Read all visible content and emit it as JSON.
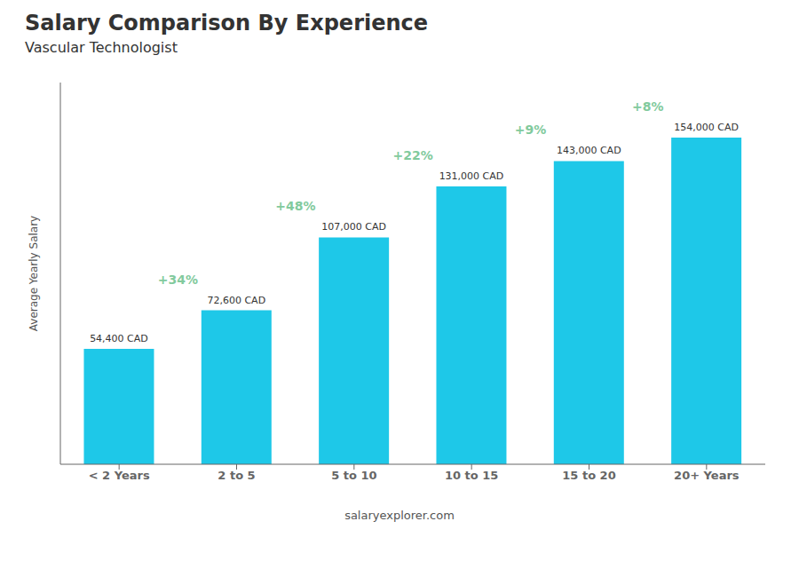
{
  "chart_data": {
    "type": "bar",
    "title": "Salary Comparison By Experience",
    "subtitle": "Vascular Technologist",
    "categories": [
      "< 2 Years",
      "2 to 5",
      "5 to 10",
      "10 to 15",
      "15 to 20",
      "20+ Years"
    ],
    "values": [
      54400,
      72600,
      107000,
      131000,
      143000,
      154000
    ],
    "value_labels": [
      "54,400 CAD",
      "72,600 CAD",
      "107,000 CAD",
      "131,000 CAD",
      "143,000 CAD",
      "154,000 CAD"
    ],
    "data_labels": true,
    "annotations": [
      "+34%",
      "+48%",
      "+22%",
      "+9%",
      "+8%"
    ],
    "ylabel": "Average Yearly Salary",
    "watermark": "salaryexplorer.com",
    "color": "#1EC8E8",
    "ylim": [
      0,
      180000
    ],
    "grid": false,
    "tick_labels": "x"
  }
}
